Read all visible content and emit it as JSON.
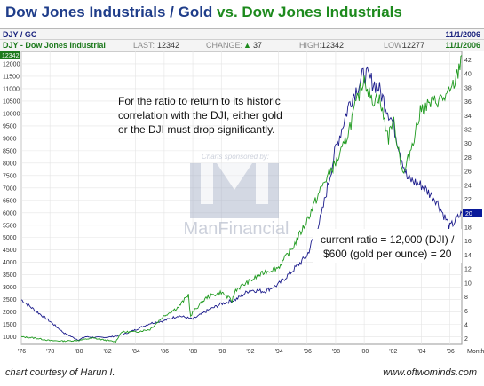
{
  "title": {
    "main": "Dow Jones Industrials / Gold",
    "vs": "vs. Dow Jones Industrials"
  },
  "header": {
    "row1": {
      "symbol": "DJY / GC",
      "date": "11/1/2006"
    },
    "row2": {
      "symbol": "DJY - Dow Jones Industrial",
      "last_label": "LAST:",
      "last_value": "12342",
      "change_label": "CHANGE:",
      "change_value": "37",
      "high_label": "HIGH:",
      "high_value": "12342",
      "low_label": "LOW:",
      "low_value": "12277",
      "date": "11/1/2006"
    }
  },
  "watermark": {
    "line1": "Charts sponsored by:",
    "line2": "ManFinancial"
  },
  "annotations": {
    "note_lines": [
      "For the ratio to return to its historic",
      "correlation with the DJI, either gold",
      "or the DJI must drop significantly."
    ],
    "ratio_lines": [
      "current ratio = 12,000 (DJI) /",
      "$600 (gold per ounce) = 20"
    ]
  },
  "footer": {
    "left": "chart courtesy of Harun I.",
    "right": "www.oftwominds.com"
  },
  "colors": {
    "djia": "#1f9a1f",
    "ratio": "#1c1c8c",
    "title_blue": "#1f3d8a",
    "title_green": "#1d8a1d",
    "current_marker": "#0a1a9a",
    "last_marker": "#1d7a1d"
  },
  "chart_data": {
    "type": "line",
    "title": "Dow Jones Industrials / Gold vs. Dow Jones Industrials",
    "x_tick_labels": [
      "'76",
      "'78",
      "'80",
      "'82",
      "'84",
      "'86",
      "'88",
      "'90",
      "'92",
      "'94",
      "'96",
      "'98",
      "'00",
      "'02",
      "'04",
      "'06",
      "Month"
    ],
    "x_range": [
      1976,
      2006.83
    ],
    "left_axis": {
      "ticks": [
        1000,
        1500,
        2000,
        2500,
        3000,
        3500,
        4000,
        4500,
        5000,
        5500,
        6000,
        6500,
        7000,
        7500,
        8000,
        8500,
        9000,
        9500,
        10000,
        10500,
        11000,
        11500,
        12000
      ],
      "range": [
        700,
        12500
      ],
      "current_label": "12342"
    },
    "right_axis": {
      "ticks": [
        2,
        4,
        6,
        8,
        10,
        12,
        14,
        16,
        18,
        20,
        22,
        24,
        26,
        28,
        30,
        32,
        34,
        36,
        38,
        40,
        42
      ],
      "range": [
        1.2,
        43.2
      ],
      "current_label": "20"
    },
    "series": [
      {
        "name": "DJY - Dow Jones Industrial",
        "axis": "left",
        "x": [
          1976,
          1977,
          1978,
          1979,
          1980,
          1981,
          1982,
          1982.6,
          1983,
          1984,
          1985,
          1986,
          1987,
          1987.7,
          1987.85,
          1988,
          1989,
          1990,
          1990.75,
          1991,
          1992,
          1993,
          1994,
          1995,
          1996,
          1997,
          1997.75,
          1998,
          1998.6,
          1999,
          2000,
          2000.5,
          2001,
          2001.7,
          2002,
          2002.75,
          2003,
          2003.5,
          2004,
          2005,
          2005.5,
          2006,
          2006.5,
          2006.83
        ],
        "y": [
          1000,
          950,
          850,
          830,
          860,
          950,
          860,
          800,
          1200,
          1200,
          1300,
          1850,
          2200,
          2700,
          1800,
          2000,
          2600,
          2800,
          2450,
          2900,
          3250,
          3600,
          3800,
          4600,
          5700,
          7000,
          7800,
          8000,
          8700,
          9500,
          11500,
          10500,
          10700,
          9000,
          9800,
          7500,
          8000,
          9100,
          10200,
          10500,
          10600,
          10800,
          11500,
          12342
        ]
      },
      {
        "name": "DJY / GC",
        "axis": "right",
        "x": [
          1976,
          1977,
          1978,
          1979,
          1980,
          1980.5,
          1981,
          1982,
          1983,
          1984,
          1985,
          1986,
          1987,
          1988,
          1989,
          1990,
          1991,
          1992,
          1993,
          1994,
          1995,
          1996,
          1997,
          1998,
          1999,
          2000,
          2001,
          2002,
          2003,
          2004,
          2005,
          2005.5,
          2006,
          2006.83
        ],
        "y": [
          7.6,
          6.0,
          4.5,
          2.8,
          1.8,
          2.3,
          2.2,
          2.2,
          2.5,
          3.3,
          4.2,
          4.6,
          5.3,
          4.8,
          6.0,
          7.0,
          7.6,
          9.0,
          8.8,
          9.8,
          11.8,
          13.9,
          19.6,
          29.2,
          36.0,
          40.0,
          38.0,
          33.0,
          25.0,
          24.0,
          22.0,
          20.0,
          18.0,
          20.0
        ]
      }
    ]
  }
}
